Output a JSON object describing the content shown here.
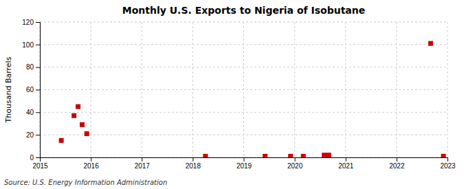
{
  "chart_data": {
    "type": "scatter",
    "title": "Monthly U.S. Exports to Nigeria of Isobutane",
    "ylabel": "Thousand Barrels",
    "annotations": [
      "Source: U.S. Energy Information Administration"
    ],
    "x": [
      2015.42,
      2015.67,
      2015.75,
      2015.83,
      2015.92,
      2018.25,
      2019.42,
      2019.92,
      2020.17,
      2020.58,
      2020.67,
      2022.67,
      2022.92
    ],
    "values": [
      15,
      37,
      45,
      29,
      21,
      1,
      1,
      1,
      1,
      2,
      2,
      101,
      1
    ],
    "color": "#cc0000",
    "marker": "square",
    "xlim": [
      2015,
      2023
    ],
    "xticks": [
      2015,
      2016,
      2017,
      2018,
      2019,
      2020,
      2021,
      2022,
      2023
    ],
    "ylim": [
      0,
      120
    ],
    "yticks": [
      0,
      20,
      40,
      60,
      80,
      100,
      120
    ],
    "grid": true
  }
}
